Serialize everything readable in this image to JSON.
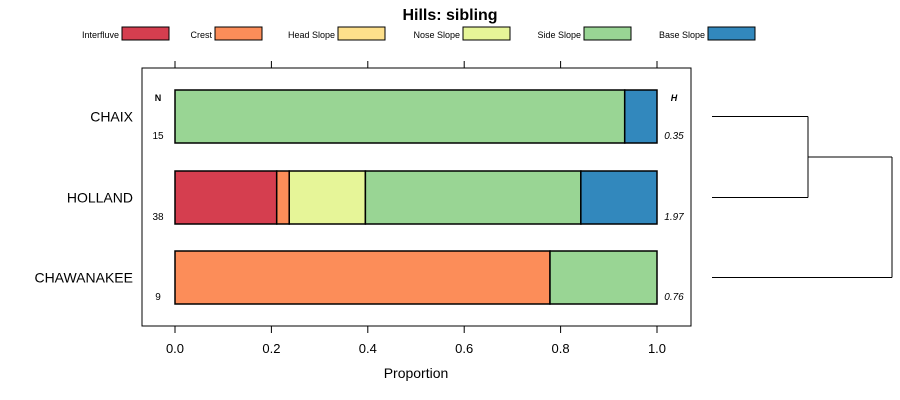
{
  "chart_data": {
    "type": "bar",
    "orientation": "horizontal",
    "stacked": true,
    "title": "Hills: sibling",
    "xlabel": "Proportion",
    "ylabel": "",
    "xlim": [
      0,
      1
    ],
    "ticks": [
      "0.0",
      "0.2",
      "0.4",
      "0.6",
      "0.8",
      "1.0"
    ],
    "tick_values": [
      0,
      0.2,
      0.4,
      0.6,
      0.8,
      1.0
    ],
    "legend_position": "top",
    "n_header": "N",
    "h_header": "H",
    "series": [
      {
        "name": "Interfluve",
        "color": "#D53E4F"
      },
      {
        "name": "Crest",
        "color": "#FC8D59"
      },
      {
        "name": "Head Slope",
        "color": "#FEE08B"
      },
      {
        "name": "Nose Slope",
        "color": "#E6F598"
      },
      {
        "name": "Side Slope",
        "color": "#99D594"
      },
      {
        "name": "Base Slope",
        "color": "#3288BD"
      }
    ],
    "rows": [
      {
        "label": "CHAIX",
        "n": "15",
        "h": "0.35",
        "values": [
          0,
          0,
          0,
          0,
          0.933,
          0.067
        ]
      },
      {
        "label": "HOLLAND",
        "n": "38",
        "h": "1.97",
        "values": [
          0.211,
          0.026,
          0,
          0.158,
          0.447,
          0.158
        ]
      },
      {
        "label": "CHAWANAKEE",
        "n": "9",
        "h": "0.76",
        "values": [
          0,
          0.778,
          0,
          0,
          0.222,
          0
        ]
      }
    ],
    "dendrogram": {
      "pairs": [
        [
          "CHAIX",
          "HOLLAND"
        ],
        [
          "CHAIX-HOLLAND",
          "CHAWANAKEE"
        ]
      ]
    }
  }
}
